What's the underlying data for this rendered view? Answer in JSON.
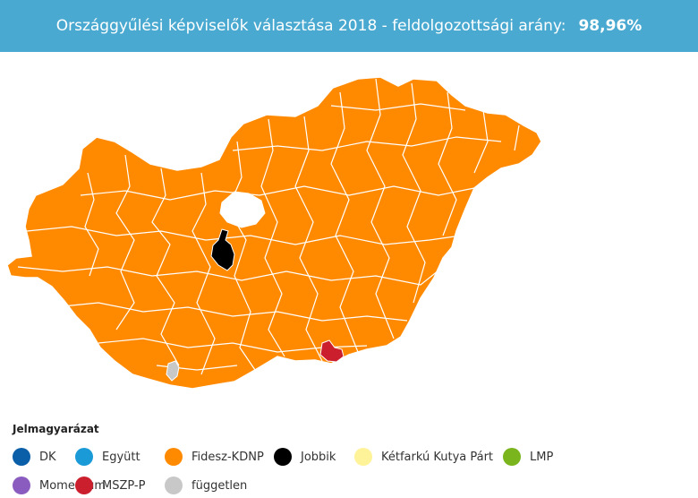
{
  "header": {
    "title": "Országgyűlési képviselők választása 2018 - feldolgozottsági arány:",
    "percentage": "98,96%"
  },
  "map": {
    "colors": {
      "fidesz": "#ff8a00",
      "jobbik": "#000000",
      "mszp": "#cc1f2e",
      "fuggetlen": "#c8c8c8",
      "no_data": "#ffffff",
      "border": "#ffffff"
    }
  },
  "legend": {
    "title": "Jelmagyarázat",
    "items": [
      {
        "label": "DK",
        "color": "#0b5ea8"
      },
      {
        "label": "Együtt",
        "color": "#1a9bd7"
      },
      {
        "label": "Fidesz-KDNP",
        "color": "#ff8a00"
      },
      {
        "label": "Jobbik",
        "color": "#000000"
      },
      {
        "label": "Kétfarkú Kutya Párt",
        "color": "#fff39a"
      },
      {
        "label": "LMP",
        "color": "#7ab51d"
      },
      {
        "label": "Momentum",
        "color": "#8a5cc0"
      },
      {
        "label": "MSZP-P",
        "color": "#cc1f2e"
      },
      {
        "label": "független",
        "color": "#c8c8c8"
      }
    ]
  }
}
